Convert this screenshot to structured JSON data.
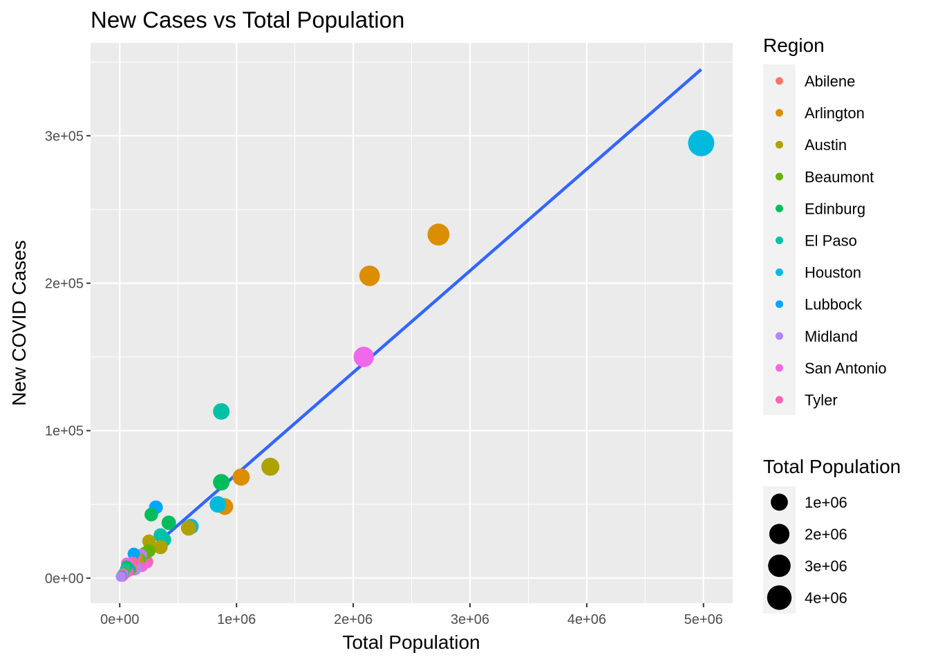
{
  "chart_data": {
    "type": "scatter",
    "title": "New Cases vs Total Population",
    "xlabel": "Total Population",
    "ylabel": "New COVID Cases",
    "xlim": [
      -250000,
      5250000
    ],
    "ylim": [
      -17000,
      363000
    ],
    "x_ticks": [
      {
        "value": 0,
        "label": "0e+00"
      },
      {
        "value": 1000000,
        "label": "1e+06"
      },
      {
        "value": 2000000,
        "label": "2e+06"
      },
      {
        "value": 3000000,
        "label": "3e+06"
      },
      {
        "value": 4000000,
        "label": "4e+06"
      },
      {
        "value": 5000000,
        "label": "5e+06"
      }
    ],
    "y_ticks": [
      {
        "value": 0,
        "label": "0e+00"
      },
      {
        "value": 100000,
        "label": "1e+05"
      },
      {
        "value": 200000,
        "label": "2e+05"
      },
      {
        "value": 300000,
        "label": "3e+05"
      }
    ],
    "grid": true,
    "legend_position": "right",
    "color_legend": {
      "title": "Region",
      "items": [
        {
          "name": "Abilene",
          "color": "#F8766D"
        },
        {
          "name": "Arlington",
          "color": "#DB8E00"
        },
        {
          "name": "Austin",
          "color": "#AEA200"
        },
        {
          "name": "Beaumont",
          "color": "#64B200"
        },
        {
          "name": "Edinburg",
          "color": "#00BD5C"
        },
        {
          "name": "El Paso",
          "color": "#00C1A7"
        },
        {
          "name": "Houston",
          "color": "#00BADE"
        },
        {
          "name": "Lubbock",
          "color": "#00A6FF"
        },
        {
          "name": "Midland",
          "color": "#B385FF"
        },
        {
          "name": "San Antonio",
          "color": "#EF67EB"
        },
        {
          "name": "Tyler",
          "color": "#FF63B6"
        }
      ]
    },
    "size_legend": {
      "title": "Total Population",
      "items": [
        {
          "value": 1000000,
          "label": "1e+06"
        },
        {
          "value": 2000000,
          "label": "2e+06"
        },
        {
          "value": 3000000,
          "label": "3e+06"
        },
        {
          "value": 4000000,
          "label": "4e+06"
        }
      ]
    },
    "trend_line": {
      "method": "linear",
      "color": "#3366FF",
      "x": [
        0,
        4980000
      ],
      "y": [
        1500,
        345000
      ]
    },
    "points": [
      {
        "region": "Houston",
        "x": 4980000,
        "y": 295000
      },
      {
        "region": "Arlington",
        "x": 2730000,
        "y": 233000
      },
      {
        "region": "Arlington",
        "x": 2140000,
        "y": 205000
      },
      {
        "region": "San Antonio",
        "x": 2090000,
        "y": 150000
      },
      {
        "region": "El Paso",
        "x": 870000,
        "y": 113000
      },
      {
        "region": "Austin",
        "x": 1290000,
        "y": 75500
      },
      {
        "region": "Arlington",
        "x": 1040000,
        "y": 68500
      },
      {
        "region": "Edinburg",
        "x": 870000,
        "y": 65000
      },
      {
        "region": "Houston",
        "x": 840000,
        "y": 50000
      },
      {
        "region": "Arlington",
        "x": 900000,
        "y": 48500
      },
      {
        "region": "Lubbock",
        "x": 310000,
        "y": 48000
      },
      {
        "region": "Edinburg",
        "x": 270000,
        "y": 43000
      },
      {
        "region": "Edinburg",
        "x": 420000,
        "y": 37500
      },
      {
        "region": "Houston",
        "x": 610000,
        "y": 35000
      },
      {
        "region": "Austin",
        "x": 590000,
        "y": 34000
      },
      {
        "region": "El Paso",
        "x": 350000,
        "y": 29000
      },
      {
        "region": "El Paso",
        "x": 380000,
        "y": 26000
      },
      {
        "region": "Austin",
        "x": 250000,
        "y": 25000
      },
      {
        "region": "Austin",
        "x": 350000,
        "y": 21000
      },
      {
        "region": "Beaumont",
        "x": 250000,
        "y": 18500
      },
      {
        "region": "Beaumont",
        "x": 220000,
        "y": 17000
      },
      {
        "region": "Lubbock",
        "x": 120000,
        "y": 16500
      },
      {
        "region": "Midland",
        "x": 180000,
        "y": 15500
      },
      {
        "region": "Abilene",
        "x": 130000,
        "y": 14000
      },
      {
        "region": "Austin",
        "x": 150000,
        "y": 13000
      },
      {
        "region": "Beaumont",
        "x": 170000,
        "y": 12500
      },
      {
        "region": "Tyler",
        "x": 230000,
        "y": 11000
      },
      {
        "region": "San Antonio",
        "x": 60000,
        "y": 10000
      },
      {
        "region": "Tyler",
        "x": 110000,
        "y": 10500
      },
      {
        "region": "Edinburg",
        "x": 60000,
        "y": 8000
      },
      {
        "region": "Midland",
        "x": 140000,
        "y": 7500
      },
      {
        "region": "Tyler",
        "x": 160000,
        "y": 9000
      },
      {
        "region": "Midland",
        "x": 130000,
        "y": 6000
      },
      {
        "region": "San Antonio",
        "x": 190000,
        "y": 8500
      },
      {
        "region": "Lubbock",
        "x": 80000,
        "y": 6500
      },
      {
        "region": "Abilene",
        "x": 50000,
        "y": 5000
      },
      {
        "region": "Beaumont",
        "x": 90000,
        "y": 5500
      },
      {
        "region": "Austin",
        "x": 40000,
        "y": 4000
      },
      {
        "region": "Tyler",
        "x": 70000,
        "y": 4500
      },
      {
        "region": "Midland",
        "x": 30000,
        "y": 3000
      },
      {
        "region": "Abilene",
        "x": 20000,
        "y": 2000
      },
      {
        "region": "San Antonio",
        "x": 40000,
        "y": 2500
      },
      {
        "region": "Lubbock",
        "x": 15000,
        "y": 1500
      },
      {
        "region": "Midland",
        "x": 10000,
        "y": 1000
      },
      {
        "region": "Tyler",
        "x": 25000,
        "y": 1200
      },
      {
        "region": "Edinburg",
        "x": 35000,
        "y": 3500
      },
      {
        "region": "Abilene",
        "x": 100000,
        "y": 7000
      },
      {
        "region": "El Paso",
        "x": 50000,
        "y": 6000
      }
    ]
  }
}
